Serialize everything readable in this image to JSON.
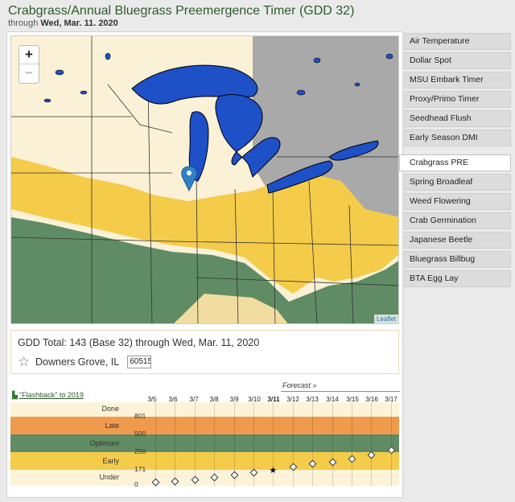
{
  "header": {
    "title": "Crabgrass/Annual Bluegrass Preemergence Timer (GDD 32)",
    "subtitle_prefix": "through",
    "subtitle_date": "Wed, Mar. 11. 2020"
  },
  "map": {
    "zoom_in": "+",
    "zoom_out": "−",
    "attribution": "Leaflet",
    "colors": {
      "land": "#fbf1d6",
      "late": "#f4cc4a",
      "optimum": "#5f8c64",
      "lakes": "#1e50c8",
      "gray": "#a9a9a9"
    }
  },
  "info": {
    "gdd_text": "GDD Total: 143 (Base 32) through Wed, Mar. 11, 2020",
    "location": "Downers Grove, IL",
    "zip": "60515"
  },
  "chart": {
    "flashback": "\"Flashback\" to 2019",
    "forecast_label": "Forecast »",
    "dates": [
      "3/5",
      "3/6",
      "3/7",
      "3/8",
      "3/9",
      "3/10",
      "3/11",
      "3/12",
      "3/13",
      "3/14",
      "3/15",
      "3/16",
      "3/17"
    ],
    "current_date": "3/11",
    "bands": [
      {
        "label": "Done",
        "color": "#fdf3d8"
      },
      {
        "label": "Late",
        "color": "#ef9a4c"
      },
      {
        "label": "Optimum",
        "color": "#5f8c64"
      },
      {
        "label": "Early",
        "color": "#f4cc4a"
      },
      {
        "label": "Under",
        "color": "#fdf3d8"
      }
    ],
    "thresholds": [
      "801",
      "500",
      "250",
      "171",
      "0"
    ]
  },
  "chart_data": {
    "type": "scatter",
    "categories": [
      "3/5",
      "3/6",
      "3/7",
      "3/8",
      "3/9",
      "3/10",
      "3/11",
      "3/12",
      "3/13",
      "3/14",
      "3/15",
      "3/16",
      "3/17"
    ],
    "series": [
      {
        "values": [
          18,
          27,
          41,
          70,
          95,
          120,
          143,
          175,
          189,
          197,
          210,
          230,
          251
        ]
      }
    ],
    "band_thresholds": [
      0,
      171,
      250,
      500,
      801
    ],
    "forecast_start": "3/12"
  },
  "sidebar": {
    "items": [
      {
        "label": "Air Temperature"
      },
      {
        "label": "Dollar Spot"
      },
      {
        "label": "MSU Embark Timer"
      },
      {
        "label": "Proxy/Primo Timer"
      },
      {
        "label": "Seedhead Flush"
      },
      {
        "label": "Early Season DMI"
      },
      {
        "label": "Crabgrass PRE",
        "active": true
      },
      {
        "label": "Spring Broadleaf"
      },
      {
        "label": "Weed Flowering"
      },
      {
        "label": "Crab Germination"
      },
      {
        "label": "Japanese Beetle"
      },
      {
        "label": "Bluegrass Billbug"
      },
      {
        "label": "BTA Egg Lay"
      }
    ]
  }
}
